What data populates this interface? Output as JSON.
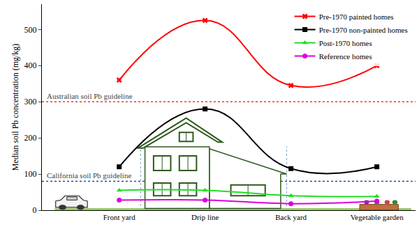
{
  "chart_data": {
    "type": "line",
    "ylabel": "Median soil Pb concentration (mg/kg)",
    "categories": [
      "Front yard",
      "Drip line",
      "Back yard",
      "Vegetable garden"
    ],
    "series": [
      {
        "name": "Pre-1970 painted homes",
        "color": "#ff0000",
        "marker": "x",
        "values": [
          360,
          525,
          345,
          400
        ]
      },
      {
        "name": "Pre-1970 non-painted homes",
        "color": "#000000",
        "marker": "square",
        "values": [
          120,
          280,
          115,
          120
        ]
      },
      {
        "name": "Post-1970 homes",
        "color": "#22dd22",
        "marker": "triangle-up",
        "values": [
          55,
          55,
          40,
          38
        ]
      },
      {
        "name": "Reference homes",
        "color": "#dd00dd",
        "marker": "circle",
        "values": [
          28,
          28,
          18,
          25
        ]
      }
    ],
    "line_style": "smooth",
    "guidelines": [
      {
        "text": "Australian soil Pb guideline",
        "value": 300,
        "color": "#ff3030"
      },
      {
        "text": "California soil Pb guideline",
        "value": 80,
        "color": "#1f4e9a"
      }
    ],
    "ylim": [
      0,
      570
    ],
    "yticks": [
      0,
      100,
      200,
      300,
      400,
      500
    ],
    "grid": false,
    "legend": "upper right"
  }
}
